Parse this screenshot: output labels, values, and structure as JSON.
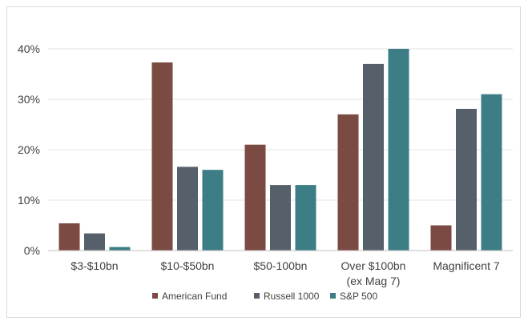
{
  "chart_data": {
    "type": "bar",
    "categories": [
      [
        "$3-$10bn"
      ],
      [
        "$10-$50bn"
      ],
      [
        "$50-100bn"
      ],
      [
        "Over $100bn",
        "(ex Mag 7)"
      ],
      [
        "Magnificent 7"
      ]
    ],
    "series": [
      {
        "name": "American Fund",
        "color": "#7b4a42",
        "values": [
          5.4,
          37.3,
          21.0,
          27.0,
          5.0
        ]
      },
      {
        "name": "Russell 1000",
        "color": "#56606b",
        "values": [
          3.4,
          16.6,
          13.0,
          37.0,
          28.1
        ]
      },
      {
        "name": "S&P 500",
        "color": "#3c7d86",
        "values": [
          0.7,
          16.0,
          13.0,
          40.0,
          31.0
        ]
      }
    ],
    "y_ticks": [
      "0%",
      "10%",
      "20%",
      "30%",
      "40%"
    ],
    "ylim": [
      0,
      40
    ],
    "grid": true,
    "legend_position": "bottom"
  }
}
